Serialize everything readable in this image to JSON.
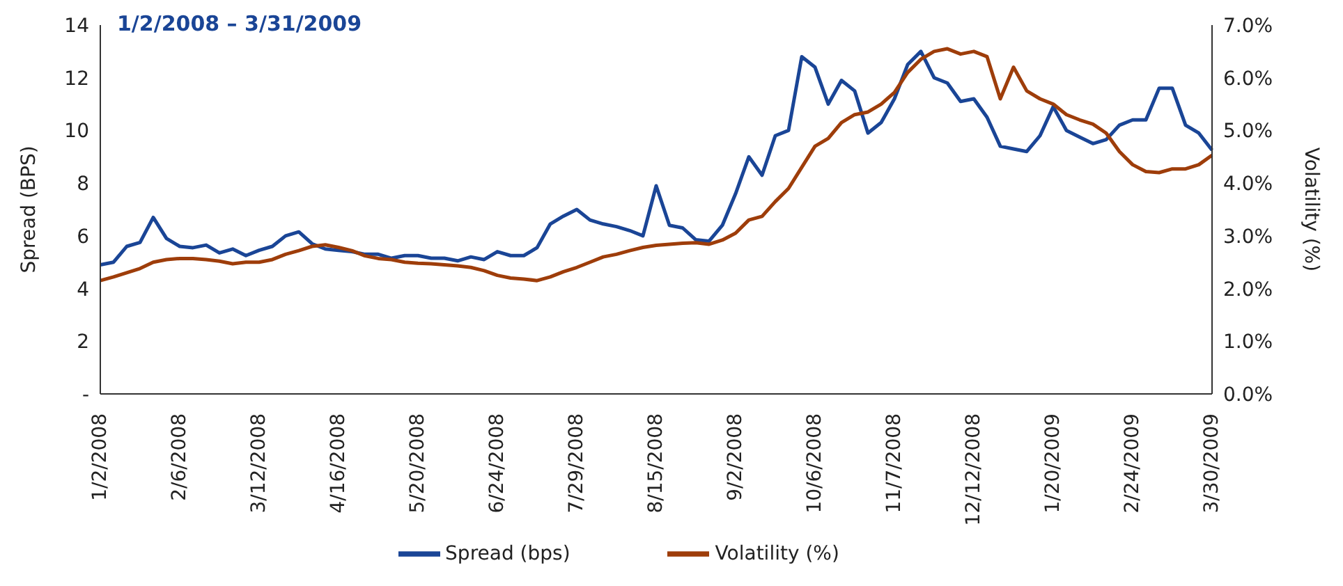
{
  "chart_data": {
    "type": "line",
    "title": "1/2/2008 – 3/31/2009",
    "ylabel": "Spread (BPS)",
    "y2label": "Volatility (%)",
    "categories": [
      "1/2/2008",
      null,
      null,
      null,
      null,
      null,
      "2/6/2008",
      null,
      null,
      null,
      null,
      null,
      "3/12/2008",
      null,
      null,
      null,
      null,
      null,
      "4/16/2008",
      null,
      null,
      null,
      null,
      null,
      "5/20/2008",
      null,
      null,
      null,
      null,
      null,
      "6/24/2008",
      null,
      null,
      null,
      null,
      null,
      "7/29/2008",
      null,
      null,
      null,
      null,
      null,
      "8/15/2008",
      null,
      null,
      null,
      null,
      null,
      "9/2/2008",
      null,
      null,
      null,
      null,
      null,
      "10/6/2008",
      null,
      null,
      null,
      null,
      null,
      "11/7/2008",
      null,
      null,
      null,
      null,
      null,
      "12/12/2008",
      null,
      null,
      null,
      null,
      null,
      "1/20/2009",
      null,
      null,
      null,
      null,
      null,
      "2/24/2009",
      null,
      null,
      null,
      null,
      null,
      "3/30/2009"
    ],
    "series": [
      {
        "name": "Spread (bps)",
        "color": "#1a4596",
        "values": [
          4.9,
          5.0,
          5.6,
          5.75,
          6.7,
          5.9,
          5.6,
          5.55,
          5.65,
          5.35,
          5.5,
          5.25,
          5.45,
          5.6,
          6.0,
          6.15,
          5.7,
          5.5,
          5.45,
          5.4,
          5.3,
          5.3,
          5.15,
          5.25,
          5.25,
          5.15,
          5.15,
          5.05,
          5.2,
          5.1,
          5.4,
          5.25,
          5.25,
          5.55,
          6.45,
          6.75,
          7.0,
          6.6,
          6.45,
          6.35,
          6.2,
          6.0,
          7.9,
          6.4,
          6.3,
          5.85,
          5.8,
          6.4,
          7.6,
          9.0,
          8.3,
          9.8,
          10.0,
          12.8,
          12.4,
          11.0,
          11.9,
          11.5,
          9.9,
          10.3,
          11.2,
          12.5,
          13.0,
          12.0,
          11.8,
          11.1,
          11.2,
          10.5,
          9.4,
          9.3,
          9.2,
          9.8,
          10.9,
          10.0,
          9.75,
          9.5,
          9.65,
          10.2,
          10.4,
          10.4,
          11.6,
          11.6,
          10.2,
          9.9,
          9.25
        ]
      },
      {
        "name": "Volatility (%)",
        "color": "#9e3d0a",
        "axis": "y2",
        "values": [
          2.15,
          2.22,
          2.3,
          2.38,
          2.5,
          2.55,
          2.57,
          2.57,
          2.55,
          2.52,
          2.47,
          2.5,
          2.5,
          2.55,
          2.65,
          2.72,
          2.8,
          2.83,
          2.78,
          2.72,
          2.62,
          2.57,
          2.55,
          2.5,
          2.48,
          2.47,
          2.45,
          2.43,
          2.4,
          2.34,
          2.25,
          2.2,
          2.18,
          2.15,
          2.22,
          2.32,
          2.4,
          2.5,
          2.6,
          2.65,
          2.72,
          2.78,
          2.82,
          2.84,
          2.86,
          2.87,
          2.84,
          2.92,
          3.05,
          3.3,
          3.37,
          3.65,
          3.9,
          4.3,
          4.7,
          4.85,
          5.15,
          5.3,
          5.35,
          5.5,
          5.72,
          6.1,
          6.35,
          6.5,
          6.55,
          6.45,
          6.5,
          6.4,
          5.6,
          6.2,
          5.75,
          5.6,
          5.5,
          5.3,
          5.2,
          5.12,
          4.95,
          4.6,
          4.35,
          4.22,
          4.2,
          4.27,
          4.27,
          4.35,
          4.53
        ]
      }
    ],
    "ylim": [
      0,
      14
    ],
    "yticks": [
      {
        "value": 0,
        "label": "-"
      },
      2,
      4,
      6,
      8,
      10,
      12,
      14
    ],
    "y2lim": [
      0,
      7
    ],
    "y2ticks": [
      {
        "value": 0,
        "label": "0.0%"
      },
      {
        "value": 1,
        "label": "1.0%"
      },
      {
        "value": 2,
        "label": "2.0%"
      },
      {
        "value": 3,
        "label": "3.0%"
      },
      {
        "value": 4,
        "label": "4.0%"
      },
      {
        "value": 5,
        "label": "5.0%"
      },
      {
        "value": 6,
        "label": "6.0%"
      },
      {
        "value": 7,
        "label": "7.0%"
      }
    ],
    "legend": "bottom",
    "marker": "none",
    "line_style": "solid"
  }
}
